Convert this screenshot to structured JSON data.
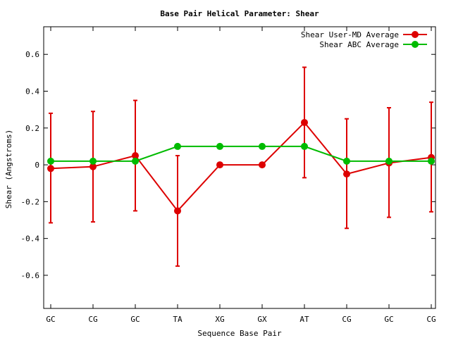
{
  "chart_data": {
    "type": "line",
    "title": "Base Pair Helical Parameter: Shear",
    "xlabel": "Sequence Base Pair",
    "ylabel": "Shear (Angstroms)",
    "categories": [
      "GC",
      "CG",
      "GC",
      "TA",
      "XG",
      "GX",
      "AT",
      "CG",
      "GC",
      "CG"
    ],
    "ylim": [
      -0.78,
      0.75
    ],
    "yticks": [
      -0.6,
      -0.4,
      -0.2,
      0,
      0.2,
      0.4,
      0.6
    ],
    "ytick_labels": [
      "-0.6",
      "-0.4",
      "-0.2",
      "0",
      "0.2",
      "0.4",
      "0.6"
    ],
    "grid": false,
    "legend_position": "top-right",
    "series": [
      {
        "name": "Shear User-MD Average",
        "color": "#dd0000",
        "values": [
          -0.02,
          -0.01,
          0.05,
          -0.25,
          0.0,
          0.0,
          0.23,
          -0.05,
          0.01,
          0.04
        ],
        "error_low": [
          -0.315,
          -0.31,
          -0.25,
          -0.55,
          null,
          null,
          -0.07,
          -0.345,
          -0.285,
          -0.255
        ],
        "error_high": [
          0.28,
          0.29,
          0.35,
          0.05,
          null,
          null,
          0.53,
          0.25,
          0.31,
          0.34
        ]
      },
      {
        "name": "Shear ABC Average",
        "color": "#00bb00",
        "values": [
          0.02,
          0.02,
          0.02,
          0.1,
          0.1,
          0.1,
          0.1,
          0.02,
          0.02,
          0.02
        ]
      }
    ]
  }
}
